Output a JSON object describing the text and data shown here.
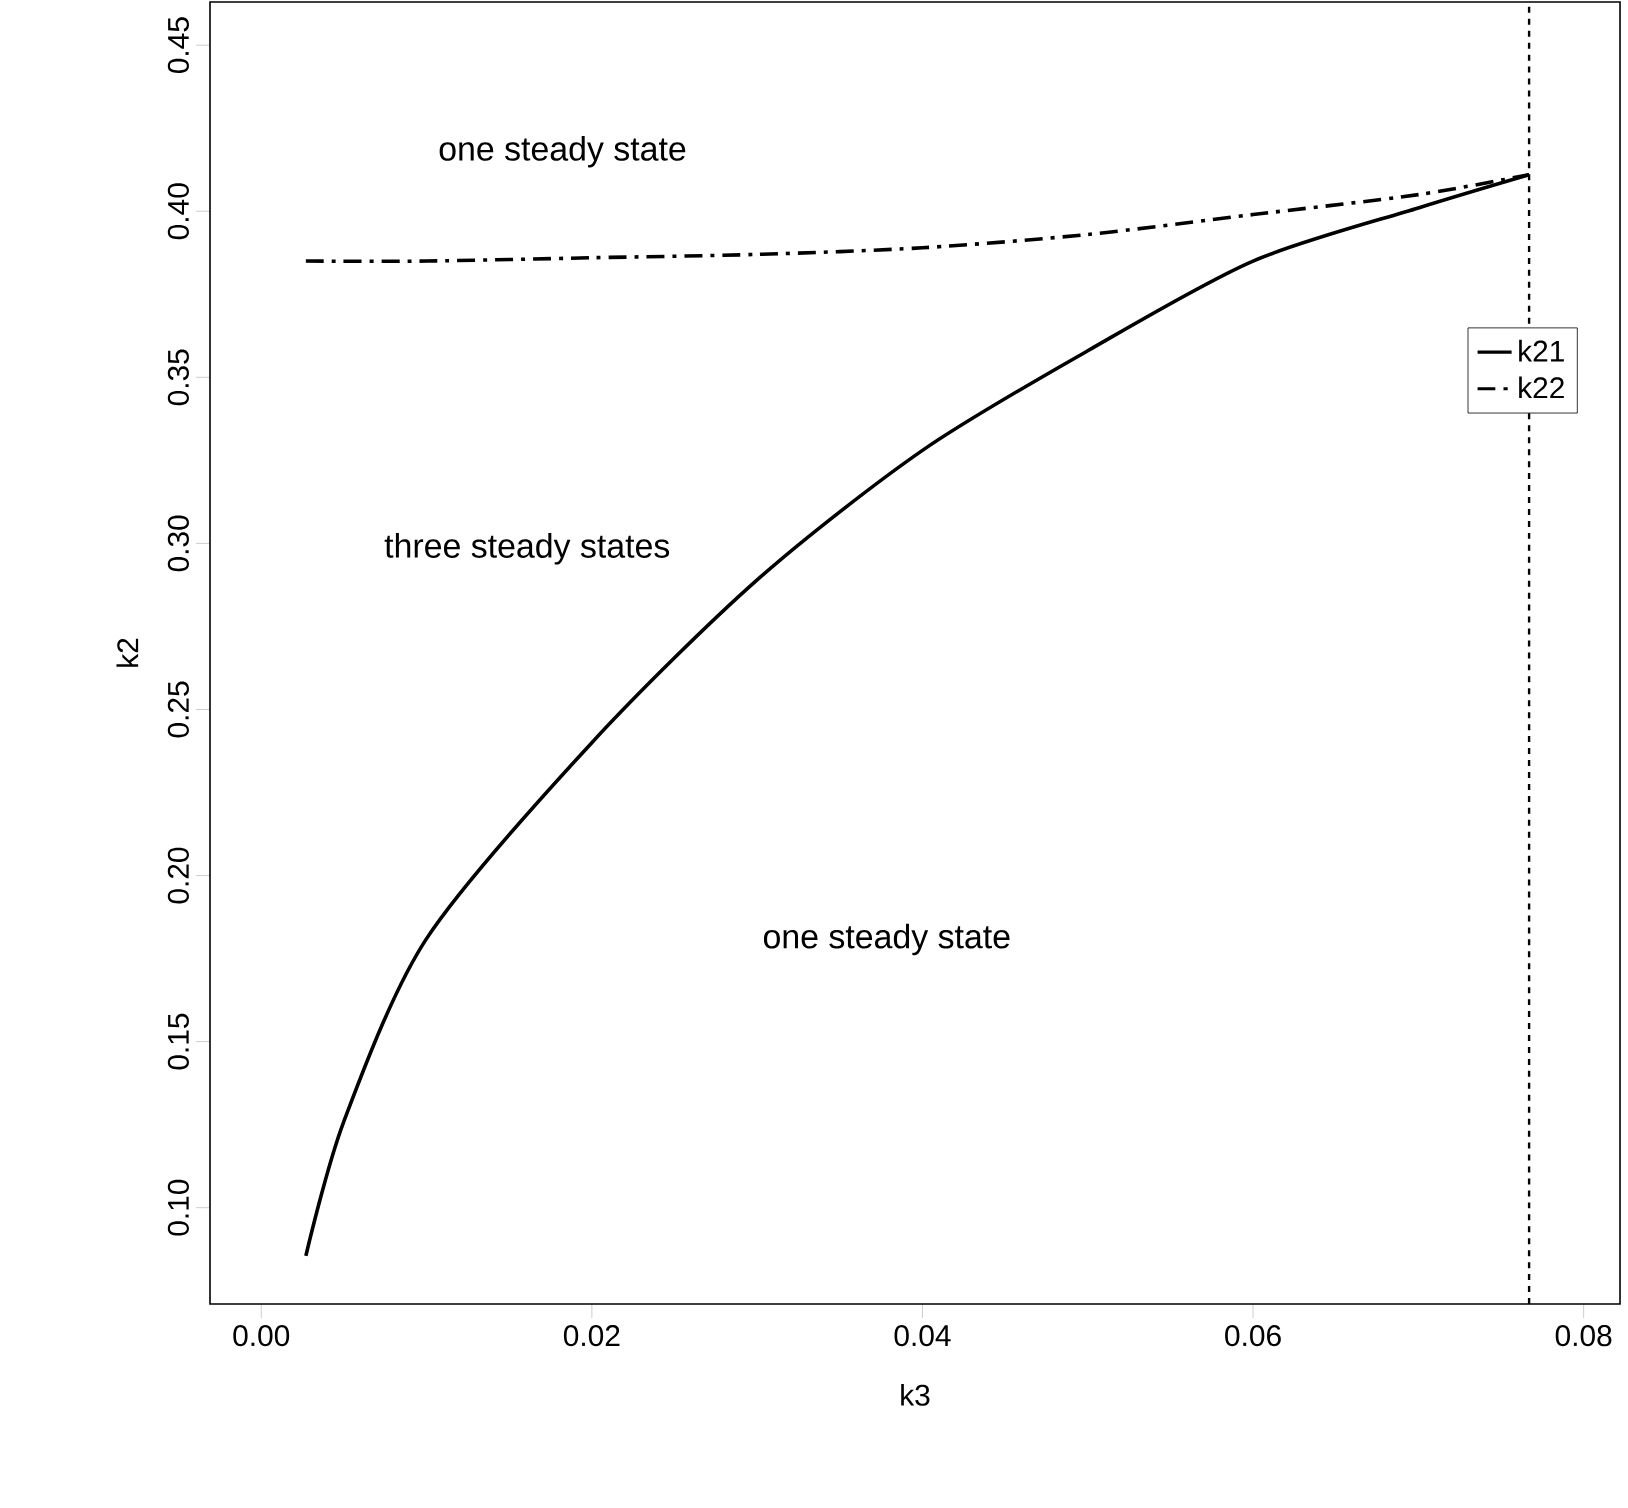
{
  "chart_data": {
    "type": "line",
    "xlabel": "k3",
    "ylabel": "k2",
    "xlim": [
      -0.0031,
      0.0822
    ],
    "ylim": [
      0.071,
      0.463
    ],
    "xticks": [
      {
        "value": 0,
        "label": "0.00"
      },
      {
        "value": 0.02,
        "label": "0.02"
      },
      {
        "value": 0.04,
        "label": "0.04"
      },
      {
        "value": 0.06,
        "label": "0.06"
      },
      {
        "value": 0.08,
        "label": "0.08"
      }
    ],
    "yticks": [
      {
        "value": 0.1,
        "label": "0.10"
      },
      {
        "value": 0.15,
        "label": "0.15"
      },
      {
        "value": 0.2,
        "label": "0.20"
      },
      {
        "value": 0.25,
        "label": "0.25"
      },
      {
        "value": 0.3,
        "label": "0.30"
      },
      {
        "value": 0.35,
        "label": "0.35"
      },
      {
        "value": 0.4,
        "label": "0.40"
      },
      {
        "value": 0.45,
        "label": "0.45"
      }
    ],
    "series": [
      {
        "name": "k21",
        "color": "#000000",
        "line_style": "solid",
        "x": [
          0.0027,
          0.005,
          0.01,
          0.02,
          0.03,
          0.04,
          0.05,
          0.06,
          0.07,
          0.0767
        ],
        "values": [
          0.0855,
          0.126,
          0.181,
          0.24,
          0.289,
          0.328,
          0.358,
          0.385,
          0.401,
          0.411
        ]
      },
      {
        "name": "k22",
        "color": "#000000",
        "line_style": "dashdot",
        "x": [
          0.0027,
          0.01,
          0.02,
          0.03,
          0.04,
          0.05,
          0.06,
          0.07,
          0.0767
        ],
        "values": [
          0.385,
          0.385,
          0.386,
          0.387,
          0.389,
          0.393,
          0.399,
          0.405,
          0.411
        ]
      }
    ],
    "ref_lines": [
      {
        "axis": "x",
        "value": 0.0767,
        "line_style": "dashed",
        "color": "#000000"
      }
    ],
    "annotations": [
      "one steady state",
      "three steady states",
      "one steady state"
    ],
    "legend": "top right",
    "grid": false,
    "marker": "none"
  }
}
